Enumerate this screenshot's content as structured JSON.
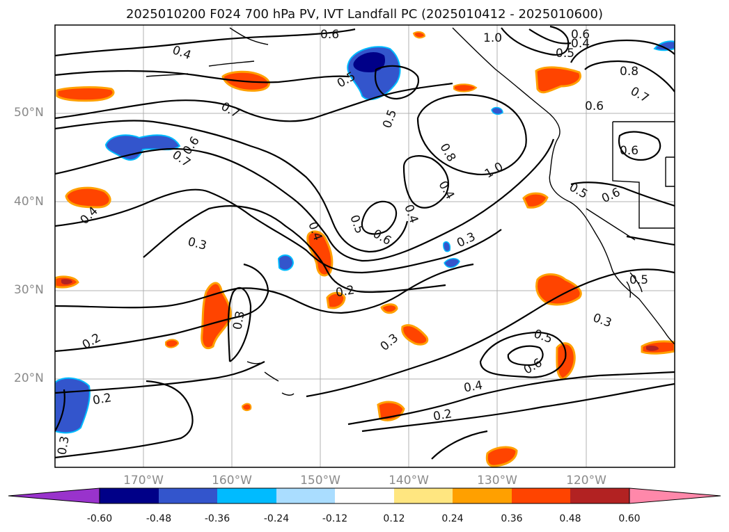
{
  "title": "2025010200 F024 700 hPa PV, IVT Landfall PC (2025010412 - 2025010600)",
  "lat_labels": [
    "50°N",
    "40°N",
    "30°N",
    "20°N"
  ],
  "lon_labels": [
    "170°W",
    "160°W",
    "150°W",
    "140°W",
    "130°W",
    "120°W"
  ],
  "colorbar": {
    "ticks": [
      "-0.60",
      "-0.48",
      "-0.36",
      "-0.24",
      "-0.12",
      "0.12",
      "0.24",
      "0.36",
      "0.48",
      "0.60"
    ],
    "colors": [
      "#9933cc",
      "#000088",
      "#3355cc",
      "#00bbff",
      "#aaddff",
      "#ffffff",
      "#ffe680",
      "#ffa000",
      "#ff4400",
      "#b22222",
      "#ff88aa"
    ]
  },
  "contour_labels": [
    "0.6",
    "1.0",
    "0.4",
    "0.5",
    "0.6",
    "0.4",
    "0.5",
    "0.8",
    "0.7",
    "0.6",
    "0.7",
    "0.5",
    "0.7",
    "0.6",
    "0.8",
    "1.0",
    "0.4",
    "0.6",
    "0.5",
    "0.6",
    "0.4",
    "0.4",
    "0.5",
    "0.6",
    "0.4",
    "0.3",
    "0.3",
    "0.5",
    "0.2",
    "0.3",
    "0.3",
    "0.3",
    "0.5",
    "0.6",
    "0.4",
    "0.2",
    "0.2",
    "0.2",
    "0.3"
  ]
}
